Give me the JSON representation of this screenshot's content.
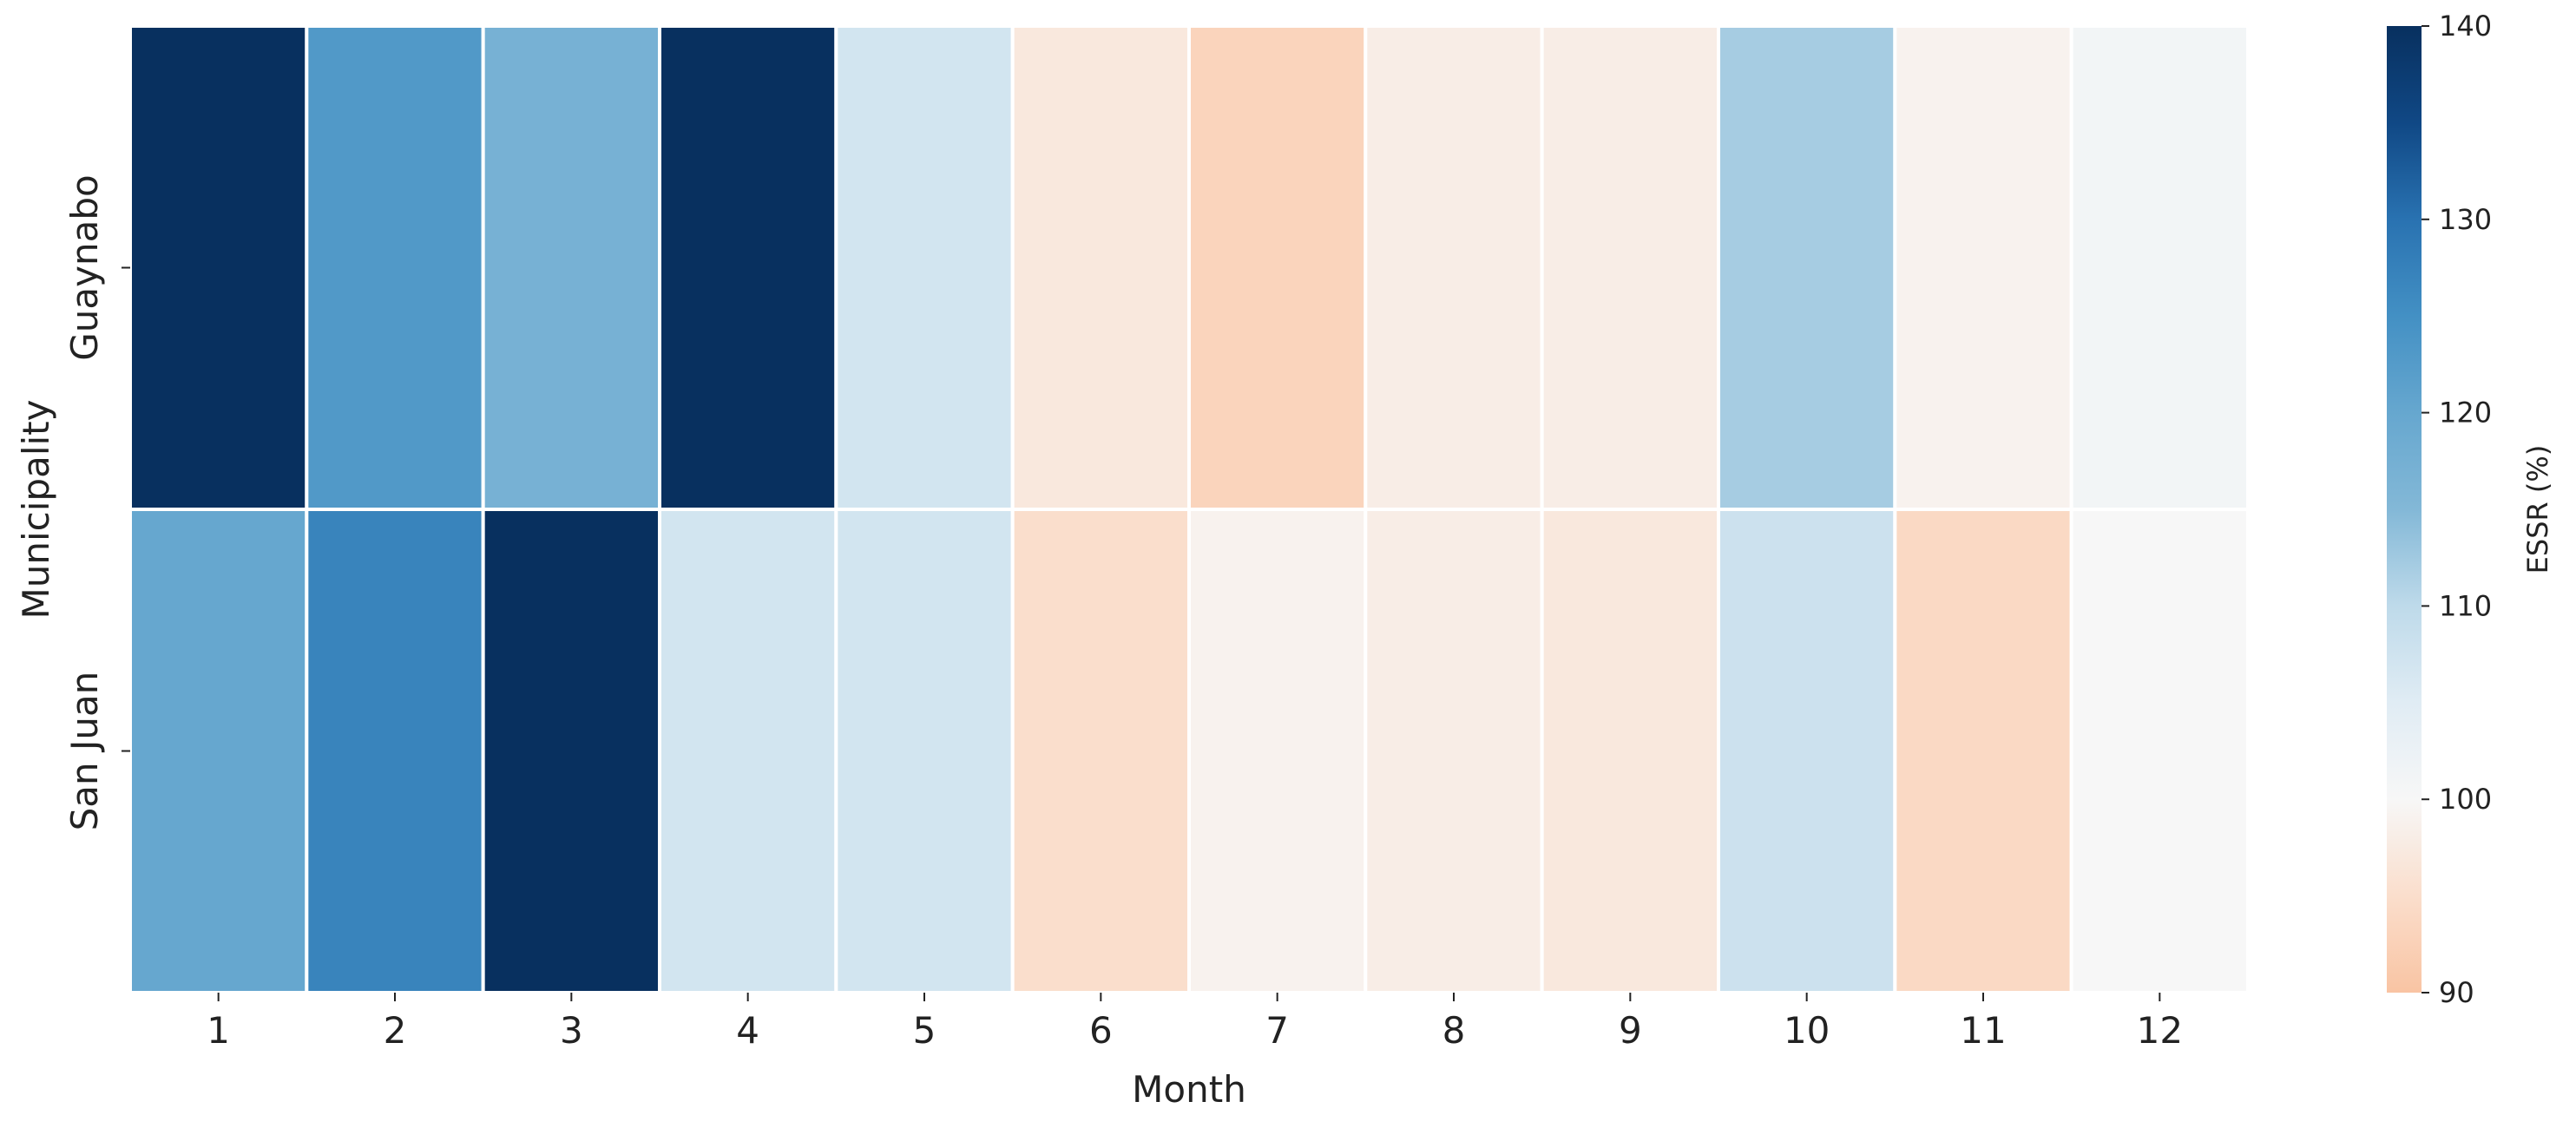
{
  "chart_data": {
    "type": "heatmap",
    "title": "",
    "xlabel": "Month",
    "ylabel": "Municipality",
    "x_categories": [
      "1",
      "2",
      "3",
      "4",
      "5",
      "6",
      "7",
      "8",
      "9",
      "10",
      "11",
      "12"
    ],
    "y_categories": [
      "Guaynabo",
      "San Juan"
    ],
    "values": [
      [
        140,
        123,
        117,
        140,
        107,
        97,
        93,
        98,
        98,
        112,
        99,
        101
      ],
      [
        120,
        127,
        140,
        107,
        107,
        95,
        99,
        98,
        97,
        108,
        94,
        100
      ]
    ],
    "colorbar": {
      "label": "ESSR (%)",
      "range": [
        90,
        140
      ],
      "ticks": [
        90,
        100,
        110,
        120,
        130,
        140
      ],
      "colormap": "diverging blue-white-orange centered at 100"
    },
    "colors": {
      "low": "#f9c4a3",
      "center": "#f7f7f7",
      "high": "#08305f",
      "cell_border": "#ffffff",
      "text": "#222222"
    }
  }
}
